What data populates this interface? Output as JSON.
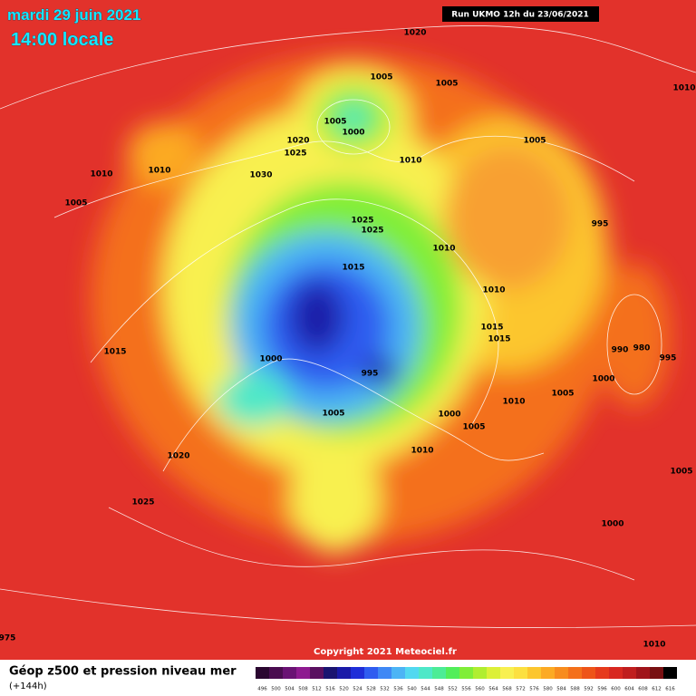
{
  "header": {
    "date": "mardi 29 juin 2021",
    "time": "14:00 locale",
    "run": "Run UKMO 12h du 23/06/2021"
  },
  "map": {
    "pressure_labels": [
      "1020",
      "1005",
      "1005",
      "1010",
      "1005",
      "1000",
      "1020",
      "1025",
      "1010",
      "1030",
      "1010",
      "1005",
      "1010",
      "1005",
      "1025",
      "1025",
      "995",
      "1010",
      "1015",
      "1010",
      "1015",
      "1015",
      "1015",
      "1000",
      "990",
      "980",
      "995",
      "995",
      "1000",
      "1010",
      "1005",
      "1005",
      "1000",
      "1005",
      "1010",
      "1020",
      "1025",
      "1005",
      "1000",
      "1010",
      "975"
    ],
    "copyright": "Copyright 2021 Meteociel.fr"
  },
  "legend": {
    "title": "Géop z500 et pression niveau mer",
    "subtitle": "(+144h)",
    "values": [
      496,
      500,
      504,
      508,
      512,
      516,
      520,
      524,
      528,
      532,
      536,
      540,
      544,
      548,
      552,
      556,
      560,
      564,
      568,
      572,
      576,
      580,
      584,
      588,
      592,
      596,
      600,
      604,
      608,
      612,
      616
    ],
    "colors": [
      "#2a0630",
      "#4a0c50",
      "#6a1274",
      "#8e1a90",
      "#5a1060",
      "#1a1470",
      "#1a1aa8",
      "#1f2ed8",
      "#2f5cf0",
      "#3f88f5",
      "#4cb4f5",
      "#52d8f0",
      "#4ee8c8",
      "#4cec96",
      "#52ee5a",
      "#80ee38",
      "#b0ee30",
      "#dcf038",
      "#f8f050",
      "#fce040",
      "#fcc62e",
      "#fcaa24",
      "#f88c1e",
      "#f4701a",
      "#ee5418",
      "#e63a1c",
      "#d82820",
      "#c01e1e",
      "#a0141a",
      "#781012",
      "#000000"
    ]
  }
}
